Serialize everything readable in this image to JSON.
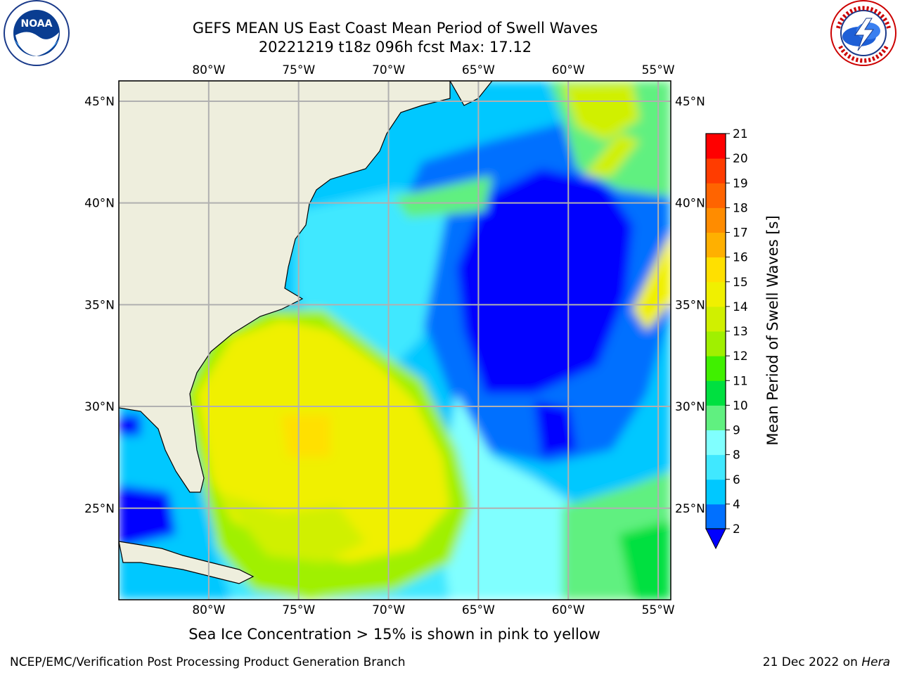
{
  "header": {
    "title_line1": "GEFS MEAN US East Coast Mean Period of Swell Waves",
    "title_line2": "20221219 t18z 096h fcst   Max: 17.12"
  },
  "logos": {
    "left": {
      "name": "noaa-logo",
      "text": "NOAA",
      "ring_text": "NATIONAL OCEANIC AND ATMOSPHERIC ADMINISTRATION · U.S. DEPARTMENT OF COMMERCE"
    },
    "right": {
      "name": "nws-logo",
      "ring_text": "NATIONAL WEATHER SERVICE"
    }
  },
  "map": {
    "projection": "cylindrical",
    "lon_range": [
      -85,
      -54.3
    ],
    "lat_range": [
      20.5,
      46
    ],
    "lon_ticks": [
      {
        "value": -80,
        "label": "80°W"
      },
      {
        "value": -75,
        "label": "75°W"
      },
      {
        "value": -70,
        "label": "70°W"
      },
      {
        "value": -65,
        "label": "65°W"
      },
      {
        "value": -60,
        "label": "60°W"
      },
      {
        "value": -55,
        "label": "55°W"
      }
    ],
    "lat_ticks": [
      {
        "value": 45,
        "label": "45°N"
      },
      {
        "value": 40,
        "label": "40°N"
      },
      {
        "value": 35,
        "label": "35°N"
      },
      {
        "value": 30,
        "label": "30°N"
      },
      {
        "value": 25,
        "label": "25°N"
      }
    ],
    "gridlines": true,
    "colors": {
      "land": "#eeeedd",
      "ocean_fallback": "#ffffff",
      "grid": "#b0b0b0",
      "coast": "#000000"
    }
  },
  "colorbar": {
    "title": "Mean Period of Swell Waves [s]",
    "levels": [
      2,
      4,
      6,
      8,
      9,
      10,
      11,
      12,
      13,
      14,
      15,
      16,
      17,
      18,
      19,
      20,
      21
    ],
    "colors": [
      "#0070ff",
      "#00c8ff",
      "#40e8ff",
      "#80ffff",
      "#60f080",
      "#00e040",
      "#40f000",
      "#a0f000",
      "#d0f000",
      "#f0f000",
      "#ffe000",
      "#ffb000",
      "#ff8c00",
      "#ff6400",
      "#ff3c00",
      "#ff0000"
    ],
    "extend_color": "#0000ff",
    "tick_labels": [
      "2",
      "4",
      "6",
      "8",
      "9",
      "10",
      "11",
      "12",
      "13",
      "14",
      "15",
      "16",
      "17",
      "18",
      "19",
      "20",
      "21"
    ]
  },
  "caption": "Sea Ice Concentration > 15% is shown in pink to yellow",
  "footer": {
    "left": "NCEP/EMC/Verification Post Processing Product Generation Branch",
    "right_date": "21 Dec 2022 on ",
    "right_host": "Hera"
  }
}
